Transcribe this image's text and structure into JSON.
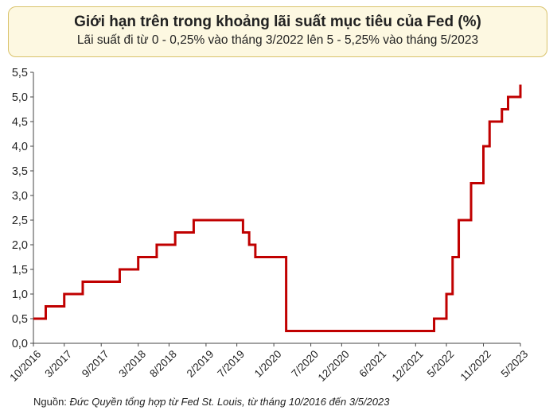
{
  "chart_data": {
    "type": "line",
    "title": "Giới hạn trên trong khoảng lãi suất mục tiêu của Fed (%)",
    "subtitle": "Lãi suất đi từ 0 - 0,25% vào tháng 3/2022 lên 5 - 5,25% vào tháng 5/2023",
    "xlabel": "",
    "ylabel": "",
    "ylim": [
      0,
      5.5
    ],
    "xlim": [
      "2016-10",
      "2023-05"
    ],
    "grid": false,
    "color": "#c00000",
    "y_ticks": [
      "0,0",
      "0,5",
      "1,0",
      "1,5",
      "2,0",
      "2,5",
      "3,0",
      "3,5",
      "4,0",
      "4,5",
      "5,0",
      "5,5"
    ],
    "x_ticks": [
      {
        "date": "2016-10",
        "label": "10/2016"
      },
      {
        "date": "2017-03",
        "label": "3/2017"
      },
      {
        "date": "2017-09",
        "label": "9/2017"
      },
      {
        "date": "2018-03",
        "label": "3/2018"
      },
      {
        "date": "2018-08",
        "label": "8/2018"
      },
      {
        "date": "2019-02",
        "label": "2/2019"
      },
      {
        "date": "2019-07",
        "label": "7/2019"
      },
      {
        "date": "2020-01",
        "label": "1/2020"
      },
      {
        "date": "2020-07",
        "label": "7/2020"
      },
      {
        "date": "2020-12",
        "label": "12/2020"
      },
      {
        "date": "2021-06",
        "label": "6/2021"
      },
      {
        "date": "2021-12",
        "label": "12/2021"
      },
      {
        "date": "2022-05",
        "label": "5/2022"
      },
      {
        "date": "2022-11",
        "label": "11/2022"
      },
      {
        "date": "2023-05",
        "label": "5/2023"
      }
    ],
    "series": [
      {
        "step": true,
        "points": [
          {
            "x": "2016-10",
            "y": 0.5
          },
          {
            "x": "2016-12",
            "y": 0.75
          },
          {
            "x": "2017-03",
            "y": 1.0
          },
          {
            "x": "2017-06",
            "y": 1.25
          },
          {
            "x": "2017-12",
            "y": 1.5
          },
          {
            "x": "2018-03",
            "y": 1.75
          },
          {
            "x": "2018-06",
            "y": 2.0
          },
          {
            "x": "2018-09",
            "y": 2.25
          },
          {
            "x": "2018-12",
            "y": 2.5
          },
          {
            "x": "2019-08",
            "y": 2.25
          },
          {
            "x": "2019-09",
            "y": 2.0
          },
          {
            "x": "2019-10",
            "y": 1.75
          },
          {
            "x": "2020-03",
            "y": 1.25
          },
          {
            "x": "2020-03",
            "y": 0.25
          },
          {
            "x": "2022-03",
            "y": 0.5
          },
          {
            "x": "2022-05",
            "y": 1.0
          },
          {
            "x": "2022-06",
            "y": 1.75
          },
          {
            "x": "2022-07",
            "y": 2.5
          },
          {
            "x": "2022-09",
            "y": 3.25
          },
          {
            "x": "2022-11",
            "y": 4.0
          },
          {
            "x": "2022-12",
            "y": 4.5
          },
          {
            "x": "2023-02",
            "y": 4.75
          },
          {
            "x": "2023-03",
            "y": 5.0
          },
          {
            "x": "2023-05",
            "y": 5.25
          }
        ]
      }
    ]
  },
  "source": {
    "label": "Nguồn:",
    "text": "Đức Quyền tổng hợp từ Fed St. Louis, từ tháng 10/2016 đến 3/5/2023"
  }
}
